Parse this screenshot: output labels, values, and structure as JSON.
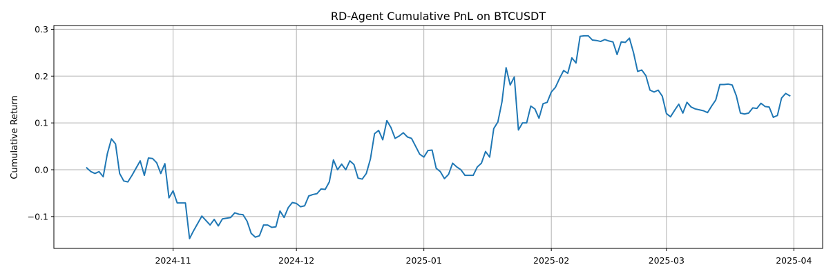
{
  "chart_data": {
    "type": "line",
    "title": "RD-Agent Cumulative PnL on BTCUSDT",
    "xlabel": "",
    "ylabel": "Cumulative Return",
    "grid": true,
    "xlim": [
      "2024-10-03",
      "2025-04-08"
    ],
    "ylim": [
      -0.168,
      0.308
    ],
    "x_ticks": [
      {
        "date": "2024-11-01",
        "label": "2024-11"
      },
      {
        "date": "2024-12-01",
        "label": "2024-12"
      },
      {
        "date": "2025-01-01",
        "label": "2025-01"
      },
      {
        "date": "2025-02-01",
        "label": "2025-02"
      },
      {
        "date": "2025-03-01",
        "label": "2025-03"
      },
      {
        "date": "2025-04-01",
        "label": "2025-04"
      }
    ],
    "y_ticks": [
      {
        "value": -0.1,
        "label": "−0.1"
      },
      {
        "value": 0.0,
        "label": "0.0"
      },
      {
        "value": 0.1,
        "label": "0.1"
      },
      {
        "value": 0.2,
        "label": "0.2"
      },
      {
        "value": 0.3,
        "label": "0.3"
      }
    ],
    "series": [
      {
        "color": "#1f77b4",
        "x": [
          "2024-10-11",
          "2024-10-12",
          "2024-10-13",
          "2024-10-14",
          "2024-10-15",
          "2024-10-16",
          "2024-10-17",
          "2024-10-18",
          "2024-10-19",
          "2024-10-20",
          "2024-10-21",
          "2024-10-22",
          "2024-10-24",
          "2024-10-25",
          "2024-10-26",
          "2024-10-27",
          "2024-10-28",
          "2024-10-29",
          "2024-10-30",
          "2024-10-31",
          "2024-11-01",
          "2024-11-02",
          "2024-11-04",
          "2024-11-05",
          "2024-11-06",
          "2024-11-08",
          "2024-11-10",
          "2024-11-11",
          "2024-11-12",
          "2024-11-13",
          "2024-11-15",
          "2024-11-16",
          "2024-11-17",
          "2024-11-18",
          "2024-11-19",
          "2024-11-20",
          "2024-11-21",
          "2024-11-22",
          "2024-11-23",
          "2024-11-24",
          "2024-11-25",
          "2024-11-26",
          "2024-11-27",
          "2024-11-28",
          "2024-11-29",
          "2024-11-30",
          "2024-12-01",
          "2024-12-02",
          "2024-12-03",
          "2024-12-04",
          "2024-12-05",
          "2024-12-06",
          "2024-12-07",
          "2024-12-08",
          "2024-12-09",
          "2024-12-10",
          "2024-12-11",
          "2024-12-12",
          "2024-12-13",
          "2024-12-14",
          "2024-12-15",
          "2024-12-16",
          "2024-12-17",
          "2024-12-18",
          "2024-12-19",
          "2024-12-20",
          "2024-12-21",
          "2024-12-22",
          "2024-12-23",
          "2024-12-24",
          "2024-12-25",
          "2024-12-26",
          "2024-12-27",
          "2024-12-28",
          "2024-12-29",
          "2024-12-30",
          "2024-12-31",
          "2025-01-01",
          "2025-01-02",
          "2025-01-03",
          "2025-01-04",
          "2025-01-05",
          "2025-01-06",
          "2025-01-07",
          "2025-01-08",
          "2025-01-09",
          "2025-01-10",
          "2025-01-11",
          "2025-01-12",
          "2025-01-13",
          "2025-01-14",
          "2025-01-15",
          "2025-01-16",
          "2025-01-17",
          "2025-01-18",
          "2025-01-19",
          "2025-01-20",
          "2025-01-21",
          "2025-01-22",
          "2025-01-23",
          "2025-01-24",
          "2025-01-25",
          "2025-01-26",
          "2025-01-27",
          "2025-01-28",
          "2025-01-29",
          "2025-01-30",
          "2025-01-31",
          "2025-02-01",
          "2025-02-02",
          "2025-02-03",
          "2025-02-04",
          "2025-02-05",
          "2025-02-06",
          "2025-02-07",
          "2025-02-08",
          "2025-02-09",
          "2025-02-10",
          "2025-02-11",
          "2025-02-12",
          "2025-02-13",
          "2025-02-14",
          "2025-02-15",
          "2025-02-16",
          "2025-02-17",
          "2025-02-18",
          "2025-02-19",
          "2025-02-20",
          "2025-02-21",
          "2025-02-22",
          "2025-02-23",
          "2025-02-24",
          "2025-02-25",
          "2025-02-26",
          "2025-02-27",
          "2025-02-28",
          "2025-03-01",
          "2025-03-02",
          "2025-03-03",
          "2025-03-04",
          "2025-03-05",
          "2025-03-06",
          "2025-03-07",
          "2025-03-08",
          "2025-03-10",
          "2025-03-11",
          "2025-03-12",
          "2025-03-13",
          "2025-03-14",
          "2025-03-15",
          "2025-03-16",
          "2025-03-17",
          "2025-03-18",
          "2025-03-19",
          "2025-03-20",
          "2025-03-21",
          "2025-03-22",
          "2025-03-23",
          "2025-03-24",
          "2025-03-25",
          "2025-03-26",
          "2025-03-27",
          "2025-03-28",
          "2025-03-29",
          "2025-03-30",
          "2025-03-31"
        ],
        "y": [
          0.004,
          -0.004,
          -0.008,
          -0.004,
          -0.015,
          0.034,
          0.066,
          0.055,
          -0.008,
          -0.024,
          -0.026,
          -0.012,
          0.019,
          -0.012,
          0.025,
          0.024,
          0.015,
          -0.008,
          0.013,
          -0.06,
          -0.045,
          -0.071,
          -0.071,
          -0.147,
          -0.13,
          -0.099,
          -0.118,
          -0.106,
          -0.12,
          -0.105,
          -0.102,
          -0.092,
          -0.095,
          -0.096,
          -0.11,
          -0.136,
          -0.144,
          -0.141,
          -0.118,
          -0.118,
          -0.123,
          -0.122,
          -0.088,
          -0.102,
          -0.081,
          -0.07,
          -0.072,
          -0.079,
          -0.077,
          -0.056,
          -0.053,
          -0.051,
          -0.041,
          -0.042,
          -0.026,
          0.021,
          0.0,
          0.012,
          0.0,
          0.019,
          0.011,
          -0.018,
          -0.02,
          -0.008,
          0.023,
          0.077,
          0.084,
          0.064,
          0.105,
          0.09,
          0.067,
          0.072,
          0.079,
          0.07,
          0.067,
          0.05,
          0.033,
          0.027,
          0.041,
          0.042,
          0.003,
          -0.004,
          -0.019,
          -0.01,
          0.014,
          0.006,
          0.0,
          -0.012,
          -0.012,
          -0.012,
          0.006,
          0.014,
          0.039,
          0.027,
          0.088,
          0.102,
          0.145,
          0.218,
          0.181,
          0.198,
          0.085,
          0.1,
          0.1,
          0.136,
          0.13,
          0.11,
          0.141,
          0.144,
          0.166,
          0.176,
          0.195,
          0.212,
          0.206,
          0.239,
          0.228,
          0.285,
          0.286,
          0.286,
          0.277,
          0.276,
          0.274,
          0.278,
          0.275,
          0.273,
          0.246,
          0.273,
          0.272,
          0.281,
          0.25,
          0.21,
          0.213,
          0.201,
          0.17,
          0.166,
          0.17,
          0.157,
          0.12,
          0.113,
          0.127,
          0.14,
          0.121,
          0.144,
          0.134,
          0.13,
          0.126,
          0.122,
          0.136,
          0.149,
          0.182,
          0.182,
          0.183,
          0.181,
          0.158,
          0.121,
          0.119,
          0.121,
          0.132,
          0.131,
          0.142,
          0.135,
          0.134,
          0.112,
          0.116,
          0.153,
          0.163,
          0.158
        ]
      }
    ]
  }
}
